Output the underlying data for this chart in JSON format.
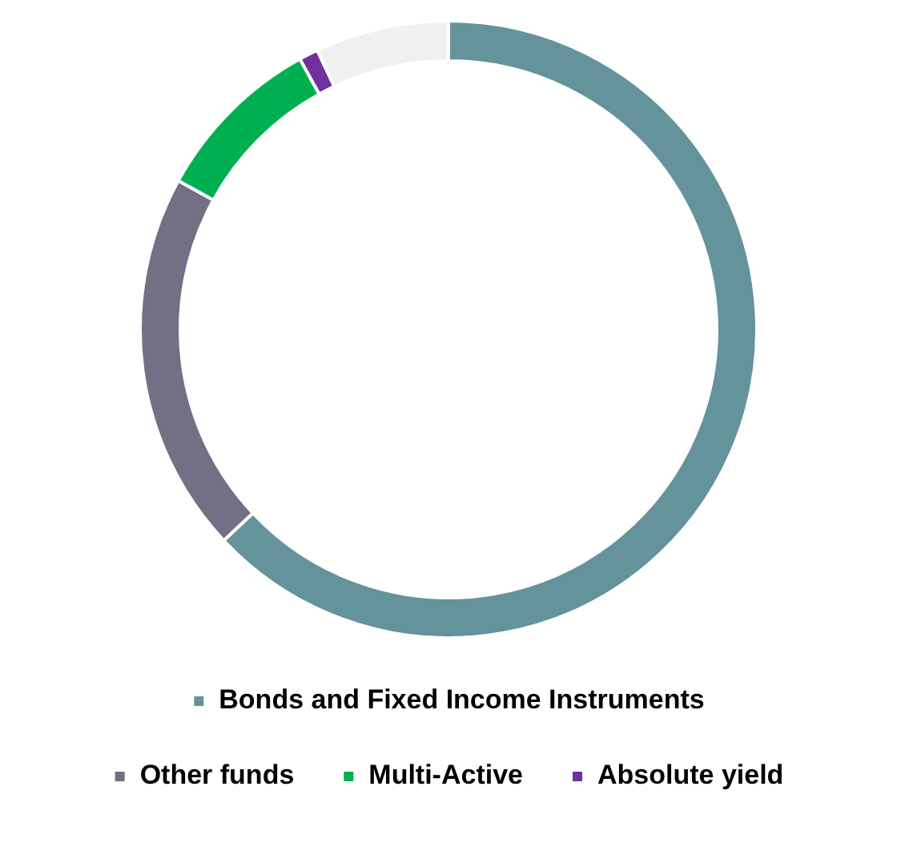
{
  "chart_data": {
    "type": "donut",
    "categories": [
      "Bonds and Fixed Income Instruments",
      "Other funds",
      "Multi-Active",
      "Absolute yield",
      null
    ],
    "values": [
      63,
      20,
      9,
      1,
      7
    ],
    "colors": [
      "#64939b",
      "#736f84",
      "#00b050",
      "#7030a0",
      "#f0f0f0"
    ],
    "legend": "bottom"
  }
}
